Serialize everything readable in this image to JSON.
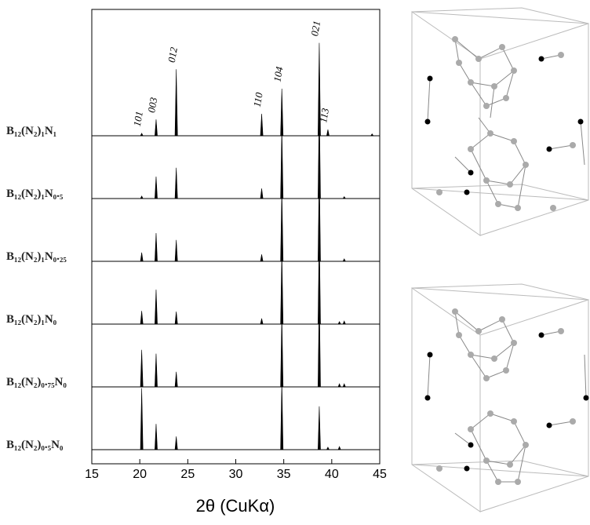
{
  "chart_data": {
    "type": "stacked_xrd",
    "xlabel": "2θ (CuKα)",
    "xlim": [
      15,
      45
    ],
    "xticks": [
      15,
      20,
      25,
      30,
      35,
      40,
      45
    ],
    "annotations": [
      {
        "text": "101",
        "x": 20.2
      },
      {
        "text": "003",
        "x": 21.7
      },
      {
        "text": "012",
        "x": 23.8
      },
      {
        "text": "110",
        "x": 32.7
      },
      {
        "text": "104",
        "x": 34.8
      },
      {
        "text": "021",
        "x": 38.7
      },
      {
        "text": "113",
        "x": 39.6
      }
    ],
    "series": [
      {
        "name": "B₁₂(N₂)₁N₁",
        "color": "#000000",
        "x": [
          20.2,
          21.7,
          23.8,
          32.7,
          34.8,
          38.7,
          39.6,
          44.2
        ],
        "values": [
          4,
          26,
          106,
          35,
          75,
          148,
          10,
          3
        ]
      },
      {
        "name": "B₁₂(N₂)₁N₀.₅",
        "color": "#000000",
        "x": [
          20.2,
          21.7,
          23.8,
          32.7,
          34.8,
          38.7,
          41.3
        ],
        "values": [
          4,
          35,
          49,
          16,
          114,
          150,
          3
        ]
      },
      {
        "name": "B₁₂(N₂)₁N₀.₂₅",
        "color": "#000000",
        "x": [
          20.2,
          21.7,
          23.8,
          32.7,
          34.8,
          38.7,
          41.3
        ],
        "values": [
          14,
          45,
          34,
          11,
          116,
          148,
          4
        ]
      },
      {
        "name": "B₁₂(N₂)₁N₀",
        "color": "#000000",
        "x": [
          20.2,
          21.7,
          23.8,
          32.7,
          34.8,
          38.7,
          40.8,
          41.3
        ],
        "values": [
          21,
          55,
          20,
          9,
          116,
          148,
          4,
          5
        ]
      },
      {
        "name": "B₁₂(N₂)₀.₇₅N₀",
        "color": "#000000",
        "x": [
          20.2,
          21.7,
          23.8,
          34.8,
          38.7,
          40.8,
          41.3
        ],
        "values": [
          59,
          53,
          24,
          116,
          148,
          5,
          5
        ]
      },
      {
        "name": "B₁₂(N₂)₀.₅N₀",
        "color": "#000000",
        "x": [
          20.2,
          21.7,
          23.8,
          34.8,
          38.7,
          39.6,
          40.8
        ],
        "values": [
          98,
          41,
          21,
          110,
          69,
          4,
          5
        ]
      }
    ]
  }
}
